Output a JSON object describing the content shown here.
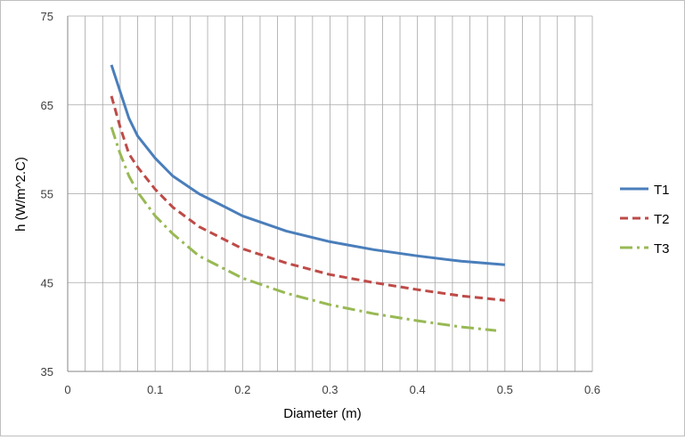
{
  "chart_data": {
    "type": "line",
    "title": "",
    "xlabel": "Diameter (m)",
    "ylabel": "h (W/m^2.C)",
    "xlim": [
      0,
      0.6
    ],
    "ylim": [
      35,
      75
    ],
    "x_ticks": [
      "0",
      "0.1",
      "0.2",
      "0.3",
      "0.4",
      "0.5",
      "0.6"
    ],
    "y_ticks": [
      "35",
      "45",
      "55",
      "65",
      "75"
    ],
    "grid": true,
    "legend_position": "right",
    "series": [
      {
        "name": "T1",
        "color": "#4a7ebb",
        "dash": "solid",
        "x": [
          0.05,
          0.06,
          0.07,
          0.08,
          0.1,
          0.12,
          0.15,
          0.2,
          0.25,
          0.3,
          0.35,
          0.4,
          0.45,
          0.5
        ],
        "values": [
          69.5,
          66.5,
          63.5,
          61.5,
          59.0,
          57.0,
          55.0,
          52.5,
          50.8,
          49.6,
          48.7,
          48.0,
          47.4,
          47.0
        ]
      },
      {
        "name": "T2",
        "color": "#be4b48",
        "dash": "dash",
        "x": [
          0.05,
          0.06,
          0.07,
          0.08,
          0.1,
          0.12,
          0.15,
          0.2,
          0.25,
          0.3,
          0.35,
          0.4,
          0.45,
          0.5
        ],
        "values": [
          66.0,
          62.5,
          59.5,
          58.0,
          55.5,
          53.5,
          51.3,
          48.8,
          47.2,
          45.9,
          45.0,
          44.2,
          43.5,
          43.0
        ]
      },
      {
        "name": "T3",
        "color": "#98b954",
        "dash": "dashdot",
        "x": [
          0.05,
          0.06,
          0.07,
          0.08,
          0.1,
          0.12,
          0.15,
          0.2,
          0.25,
          0.3,
          0.35,
          0.4,
          0.45,
          0.49
        ],
        "values": [
          62.5,
          59.5,
          57.0,
          55.2,
          52.5,
          50.5,
          48.0,
          45.5,
          43.8,
          42.5,
          41.5,
          40.7,
          40.0,
          39.6
        ]
      }
    ]
  }
}
